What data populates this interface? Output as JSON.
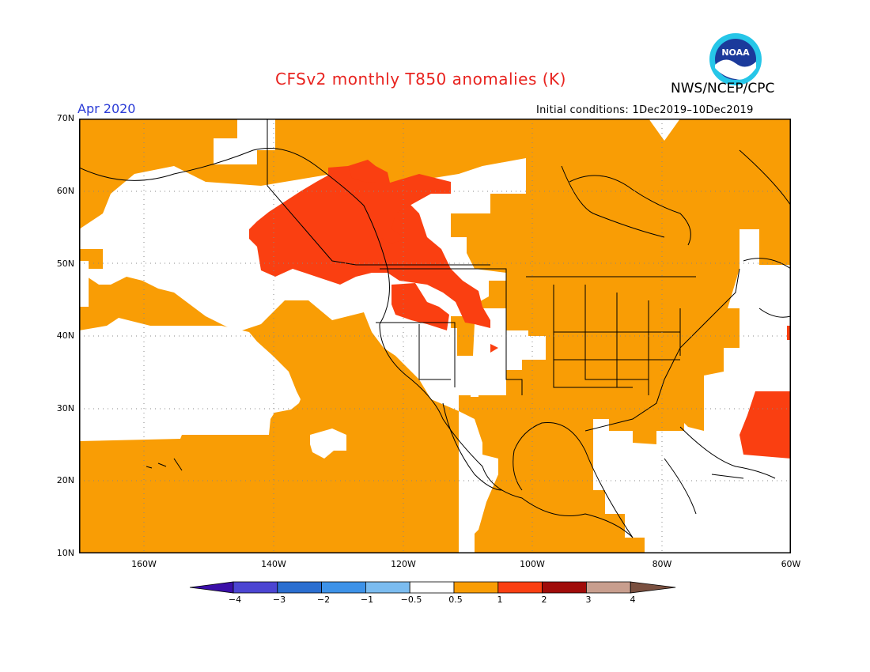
{
  "title": "CFSv2 monthly T850 anomalies (K)",
  "agency": "NWS/NCEP/CPC",
  "month": "Apr 2020",
  "initial_conditions": "Initial conditions: 1Dec2019–10Dec2019",
  "logo_text": "NOAA",
  "lat_labels": [
    "70N",
    "60N",
    "50N",
    "40N",
    "30N",
    "20N",
    "10N"
  ],
  "lon_labels": [
    "160W",
    "140W",
    "120W",
    "100W",
    "80W",
    "60W"
  ],
  "colorbar": {
    "labels": [
      "−4",
      "−3",
      "−2",
      "−1",
      "−0.5",
      "0.5",
      "1",
      "2",
      "3",
      "4"
    ],
    "colors": [
      "#3b0fa8",
      "#4c45d2",
      "#2a6ed0",
      "#3d92e8",
      "#7bbcf0",
      "#ffffff",
      "#f99d05",
      "#fa3f11",
      "#a00c0a",
      "#c89e8e",
      "#7a5040"
    ]
  },
  "anomaly_colors": {
    "0.5-1": "#f99d05",
    "1-2": "#fa3f11"
  }
}
